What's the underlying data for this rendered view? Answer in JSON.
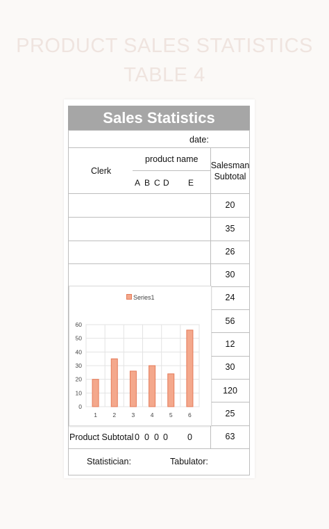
{
  "page": {
    "title_line1": "PRODUCT SALES STATISTICS",
    "title_line2": "TABLE 4"
  },
  "table": {
    "title": "Sales Statistics",
    "date_label": "date:",
    "clerk_label": "Clerk",
    "product_name_label": "product name",
    "products": [
      "A",
      "B",
      "C",
      "D",
      "E"
    ],
    "salesman_subtotal_label": "Salesman\nSubtotal",
    "rows": [
      {
        "subtotal": "20"
      },
      {
        "subtotal": "35"
      },
      {
        "subtotal": "26"
      },
      {
        "subtotal": "30"
      },
      {
        "subtotal": "24"
      },
      {
        "subtotal": "56"
      },
      {
        "subtotal": "12"
      },
      {
        "subtotal": "30"
      },
      {
        "subtotal": "120"
      },
      {
        "subtotal": "25"
      }
    ],
    "product_subtotal_row": {
      "label": "Product Subtotal",
      "values": [
        "0",
        "0",
        "0",
        "0",
        "0"
      ],
      "total": "63"
    },
    "statistician_label": "Statistician:",
    "tabulator_label": "Tabulator:"
  },
  "chart_data": {
    "type": "bar",
    "categories": [
      "1",
      "2",
      "3",
      "4",
      "5",
      "6"
    ],
    "series": [
      {
        "name": "Series1",
        "values": [
          20,
          35,
          26,
          30,
          24,
          56
        ]
      }
    ],
    "ylim": [
      0,
      60
    ],
    "yticks": [
      0,
      10,
      20,
      30,
      40,
      50,
      60
    ],
    "grid": true,
    "legend": "top",
    "colors": {
      "fill": "#f4a88c",
      "stroke": "#e47a58"
    }
  }
}
